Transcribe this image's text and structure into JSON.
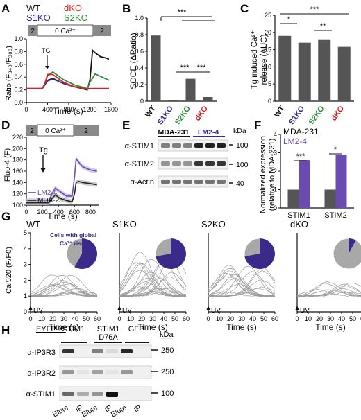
{
  "panel_letters": [
    "A",
    "B",
    "C",
    "D",
    "E",
    "F",
    "G",
    "H"
  ],
  "colors": {
    "wt": "#111111",
    "s1ko": "#3b2a8a",
    "s2ko": "#2e8b3a",
    "dko": "#d42020",
    "bar": "#555555",
    "lm24": "#6a4bb0",
    "mda": "#222222",
    "pie_on": "#3b2a8a",
    "pie_off": "#a8a8a8",
    "gray_bar": "#9a9a9a"
  },
  "panelA": {
    "legend": [
      "WT",
      "dKO",
      "S1KO",
      "S2KO"
    ],
    "protocol": [
      "2",
      "0 Ca²⁺",
      "2"
    ],
    "ylabel": "Ratio (F₃₄₀/F₃₈₀)",
    "xlabel": "Time (s)",
    "yticks": [
      "0.0",
      "0.2",
      "0.4",
      "0.6",
      "0.8",
      "1.0"
    ],
    "xticks": [
      "0",
      "400",
      "800",
      "1200",
      "1600"
    ],
    "annotation": "TG"
  },
  "panelB": {
    "ylabel": "SOCE (ΔRatio)",
    "yticks": [
      "0",
      "0.2",
      "0.4",
      "0.6",
      "0.8",
      "1.0"
    ],
    "sig": [
      "***",
      "***",
      "***"
    ]
  },
  "panelC": {
    "ylabel_1": "Tg induced Ca²⁺",
    "ylabel_2": "release (AUC)",
    "yticks": [
      "0",
      "5",
      "10",
      "15",
      "20",
      "25"
    ],
    "sig": [
      "*",
      "***",
      "**"
    ]
  },
  "panelD": {
    "protocol": [
      "2",
      "0 Ca²⁺",
      "2"
    ],
    "ylabel": "Fluo-4 (F)",
    "xlabel": "Time (s)",
    "yticks": [
      "100",
      "120",
      "140",
      "160",
      "180",
      "200",
      "220"
    ],
    "xticks": [
      "0",
      "200",
      "400",
      "600",
      "800"
    ],
    "annotation": "Tg",
    "legend": [
      "LM2-4",
      "MDA-231"
    ]
  },
  "panelE": {
    "lanes": [
      "MDA-231",
      "LM2-4"
    ],
    "kda": "kDa",
    "rows": [
      "α-STIM1",
      "α-STIM2",
      "α-Actin"
    ],
    "markers": [
      "100",
      "100",
      "40"
    ]
  },
  "panelF": {
    "legend": [
      "MDA-231",
      "LM2-4"
    ],
    "ylabel_1": "Normalized expression",
    "ylabel_2": "(relative to MDA-231)",
    "yticks": [
      "0",
      "1",
      "2",
      "3",
      "4"
    ],
    "sig": [
      "***",
      "*"
    ]
  },
  "panelG": {
    "titles": [
      "WT",
      "S1KO",
      "S2KO",
      "dKO"
    ],
    "pie_label_1": "Cells with global",
    "pie_label_2": "Ca²⁺ rise",
    "ylabel": "Cal520 (F/F0)",
    "xlabel": "Time (s)",
    "yticks": [
      "0",
      "1",
      "2",
      "3",
      "4",
      "5"
    ],
    "xticks": [
      "0",
      "10",
      "20",
      "30",
      "40",
      "50",
      "60"
    ],
    "uv": "UV",
    "pie_fractions": [
      0.58,
      0.72,
      0.72,
      0.08
    ]
  },
  "panelH": {
    "header": "EYFP-X:",
    "groups": [
      "STIM1",
      "STIM1",
      "GFP"
    ],
    "group2_sub": "D76A",
    "kda": "kDa",
    "rows": [
      "α-IP3R3",
      "α-IP3R2",
      "α-STIM1"
    ],
    "markers": [
      "250",
      "250",
      "100"
    ],
    "lanes": [
      "Elute",
      "IP",
      "Elute",
      "IP",
      "Elute",
      "IP"
    ]
  },
  "chart_data": [
    {
      "id": "A",
      "type": "line",
      "xlabel": "Time (s)",
      "ylabel": "Ratio (F340/F380)",
      "xlim": [
        0,
        1600
      ],
      "ylim": [
        0,
        1.0
      ],
      "series": [
        {
          "name": "WT",
          "x": [
            0,
            300,
            350,
            400,
            500,
            700,
            900,
            1150,
            1200,
            1250,
            1300,
            1400,
            1500,
            1560
          ],
          "y": [
            0.22,
            0.22,
            0.28,
            0.35,
            0.38,
            0.3,
            0.25,
            0.2,
            0.35,
            0.82,
            0.78,
            0.72,
            0.7,
            0.68
          ]
        },
        {
          "name": "S1KO",
          "x": [
            0,
            300,
            350,
            400,
            500,
            700,
            900,
            1150,
            1200,
            1300,
            1560
          ],
          "y": [
            0.22,
            0.22,
            0.28,
            0.34,
            0.37,
            0.3,
            0.25,
            0.22,
            0.22,
            0.22,
            0.22
          ]
        },
        {
          "name": "S2KO",
          "x": [
            0,
            300,
            350,
            400,
            500,
            700,
            900,
            1150,
            1200,
            1300,
            1560
          ],
          "y": [
            0.22,
            0.22,
            0.3,
            0.42,
            0.48,
            0.36,
            0.28,
            0.22,
            0.32,
            0.45,
            0.35
          ]
        },
        {
          "name": "dKO",
          "x": [
            0,
            300,
            350,
            400,
            500,
            700,
            900,
            1150,
            1200,
            1300,
            1560
          ],
          "y": [
            0.22,
            0.22,
            0.3,
            0.44,
            0.44,
            0.32,
            0.25,
            0.21,
            0.22,
            0.22,
            0.22
          ]
        }
      ]
    },
    {
      "id": "B",
      "type": "bar",
      "categories": [
        "WT",
        "S1KO",
        "S2KO",
        "dKO"
      ],
      "values": [
        0.79,
        0.01,
        0.27,
        0.05
      ],
      "ylabel": "SOCE (ΔRatio)",
      "ylim": [
        0,
        1.0
      ]
    },
    {
      "id": "C",
      "type": "bar",
      "categories": [
        "WT",
        "S1KO",
        "S2KO",
        "dKO"
      ],
      "values": [
        19.0,
        17.0,
        18.0,
        15.8
      ],
      "ylabel": "Tg induced Ca2+ release (AUC)",
      "ylim": [
        0,
        25
      ]
    },
    {
      "id": "D",
      "type": "line",
      "xlabel": "Time (s)",
      "ylabel": "Fluo-4 (F)",
      "xlim": [
        0,
        900
      ],
      "ylim": [
        100,
        220
      ],
      "series": [
        {
          "name": "LM2-4",
          "x": [
            0,
            100,
            200,
            280,
            320,
            360,
            420,
            500,
            570,
            600,
            620,
            650,
            700,
            800,
            880
          ],
          "y": [
            108,
            108,
            108,
            108,
            120,
            130,
            124,
            116,
            116,
            150,
            182,
            176,
            168,
            162,
            160
          ]
        },
        {
          "name": "MDA-231",
          "x": [
            0,
            100,
            200,
            280,
            320,
            360,
            420,
            500,
            570,
            600,
            620,
            650,
            700,
            800,
            880
          ],
          "y": [
            104,
            104,
            104,
            104,
            112,
            118,
            112,
            108,
            106,
            120,
            140,
            142,
            140,
            138,
            136
          ]
        }
      ]
    },
    {
      "id": "F",
      "type": "bar",
      "categories": [
        "STIM1",
        "STIM2"
      ],
      "series": [
        {
          "name": "MDA-231",
          "values": [
            1.0,
            1.0
          ]
        },
        {
          "name": "LM2-4",
          "values": [
            2.6,
            2.9
          ]
        }
      ],
      "ylabel": "Normalized expression (relative to MDA-231)",
      "ylim": [
        0,
        4
      ]
    }
  ]
}
